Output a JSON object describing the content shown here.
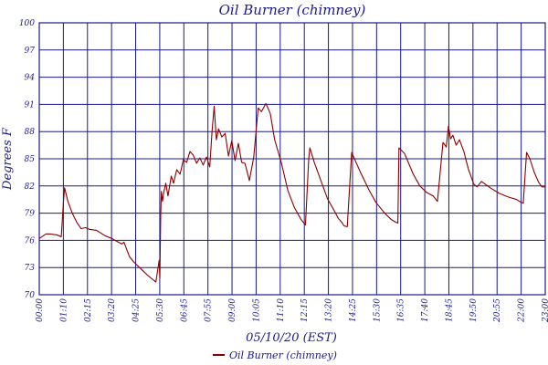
{
  "chart_data": {
    "type": "line",
    "title": "Oil Burner (chimney)",
    "xlabel": "05/10/20 (EST)",
    "ylabel": "Degrees F",
    "ylim": [
      70,
      100
    ],
    "y_ticks": [
      "70",
      "73",
      "76",
      "79",
      "82",
      "85",
      "88",
      "91",
      "94",
      "97",
      "100"
    ],
    "y_tick_values": [
      70,
      73,
      76,
      79,
      82,
      85,
      88,
      91,
      94,
      97,
      100
    ],
    "x_ticks": [
      "00:00",
      "01:10",
      "02:15",
      "03:20",
      "04:25",
      "05:30",
      "06:45",
      "07:55",
      "09:00",
      "10:05",
      "11:10",
      "12:15",
      "13:20",
      "14:25",
      "15:30",
      "16:35",
      "17:40",
      "18:45",
      "19:50",
      "20:55",
      "22:00",
      "23:00"
    ],
    "xlim_hours": [
      0,
      23
    ],
    "grid": true,
    "legend": "bottom-center",
    "colors": {
      "series": "#8b0000",
      "grid": "#1a1a8c",
      "text": "#1a1a8c"
    },
    "series": [
      {
        "name": "Oil Burner (chimney)",
        "x_hours": [
          0.0,
          0.3,
          0.5,
          0.8,
          1.0,
          1.1,
          1.15,
          1.3,
          1.5,
          1.7,
          1.9,
          2.1,
          2.3,
          2.6,
          3.0,
          3.3,
          3.6,
          3.75,
          3.85,
          4.1,
          4.3,
          4.6,
          4.9,
          5.1,
          5.3,
          5.45,
          5.48,
          5.52,
          5.55,
          5.6,
          5.65,
          5.75,
          5.85,
          6.0,
          6.1,
          6.25,
          6.4,
          6.55,
          6.7,
          6.85,
          7.0,
          7.15,
          7.3,
          7.45,
          7.6,
          7.75,
          7.85,
          7.95,
          8.05,
          8.15,
          8.3,
          8.45,
          8.6,
          8.75,
          8.9,
          9.05,
          9.2,
          9.35,
          9.55,
          9.75,
          9.95,
          10.1,
          10.3,
          10.5,
          10.7,
          11.0,
          11.3,
          11.6,
          11.9,
          12.1,
          12.25,
          12.3,
          12.5,
          12.8,
          13.1,
          13.4,
          13.6,
          13.75,
          13.85,
          14.0,
          14.2,
          14.6,
          15.0,
          15.3,
          15.7,
          16.0,
          16.2,
          16.3,
          16.35,
          16.6,
          17.0,
          17.3,
          17.6,
          17.9,
          18.1,
          18.35,
          18.5,
          18.6,
          18.7,
          18.8,
          18.95,
          19.1,
          19.3,
          19.5,
          19.75,
          19.9,
          20.1,
          20.5,
          20.9,
          21.3,
          21.7,
          21.9,
          22.0,
          22.15,
          22.3,
          22.5,
          22.7,
          22.85,
          23.0
        ],
        "y_values": [
          76.2,
          76.7,
          76.7,
          76.6,
          76.4,
          80.3,
          81.8,
          80.3,
          79.0,
          78.0,
          77.3,
          77.4,
          77.2,
          77.1,
          76.5,
          76.2,
          75.8,
          75.6,
          75.8,
          74.2,
          73.6,
          72.9,
          72.2,
          71.8,
          71.4,
          73.8,
          71.8,
          78.8,
          81.4,
          80.3,
          81.2,
          82.3,
          80.9,
          83.1,
          82.3,
          83.8,
          83.3,
          84.9,
          84.6,
          85.8,
          85.4,
          84.5,
          85.1,
          84.3,
          85.2,
          84.1,
          87.9,
          90.8,
          87.1,
          88.3,
          87.4,
          87.8,
          85.3,
          87.0,
          84.8,
          86.7,
          84.6,
          84.5,
          82.6,
          85.2,
          90.6,
          90.2,
          91.1,
          90.0,
          87.1,
          84.6,
          81.5,
          79.6,
          78.3,
          77.7,
          85.1,
          86.2,
          84.6,
          82.6,
          80.6,
          79.3,
          78.4,
          78.0,
          77.6,
          77.5,
          85.7,
          83.5,
          81.5,
          80.2,
          79.0,
          78.3,
          78.0,
          77.9,
          86.2,
          85.6,
          83.3,
          82.0,
          81.3,
          80.9,
          80.3,
          86.8,
          86.3,
          88.6,
          87.2,
          87.6,
          86.5,
          87.1,
          85.8,
          83.9,
          82.2,
          81.9,
          82.5,
          81.8,
          81.2,
          80.8,
          80.5,
          80.2,
          80.1,
          85.7,
          85.0,
          83.5,
          82.4,
          81.9,
          81.9
        ]
      }
    ]
  }
}
